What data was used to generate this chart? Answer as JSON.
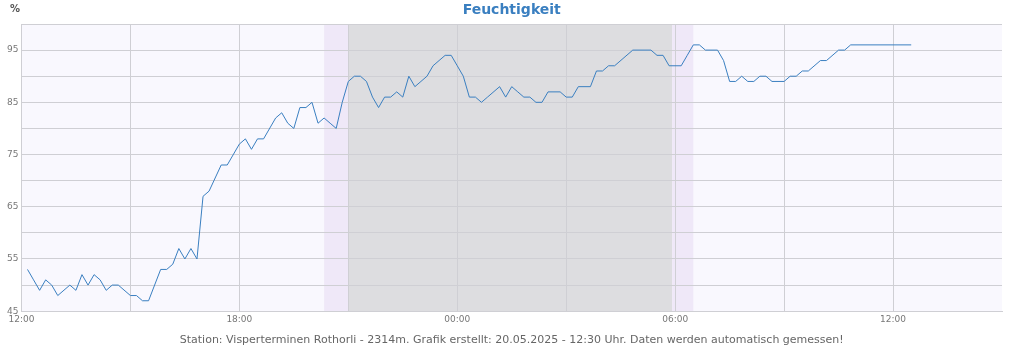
{
  "chart_data": {
    "type": "line",
    "title": "Feuchtigkeit",
    "ylabel": "%",
    "annotations": [
      "Station: Visperterminen Rothorli - 2314m. Grafik erstellt: 20.05.2025 - 12:30 Uhr. Daten werden automatisch gemessen!"
    ],
    "xlim": [
      "2025-05-19T12:00",
      "2025-05-20T15:00"
    ],
    "xticks": [
      {
        "value": "2025-05-19T12:00",
        "label": "12:00"
      },
      {
        "value": "2025-05-19T15:00",
        "label": null
      },
      {
        "value": "2025-05-19T18:00",
        "label": "18:00"
      },
      {
        "value": "2025-05-19T21:00",
        "label": null
      },
      {
        "value": "2025-05-20T00:00",
        "label": "00:00"
      },
      {
        "value": "2025-05-20T03:00",
        "label": null
      },
      {
        "value": "2025-05-20T06:00",
        "label": "06:00"
      },
      {
        "value": "2025-05-20T09:00",
        "label": null
      },
      {
        "value": "2025-05-20T12:00",
        "label": "12:00"
      }
    ],
    "ylim": [
      45,
      100
    ],
    "yticks": [
      45,
      {
        "value": 50,
        "label": null
      },
      55,
      {
        "value": 60,
        "label": null
      },
      65,
      {
        "value": 70,
        "label": null
      },
      75,
      {
        "value": 80,
        "label": null
      },
      85,
      {
        "value": 90,
        "label": null
      },
      95,
      {
        "value": 100,
        "label": null
      }
    ],
    "grid": true,
    "legend": false,
    "marker": "none",
    "bands": [
      {
        "axis": "x",
        "from": "2025-05-19T20:20",
        "to": "2025-05-19T21:00",
        "color": "#efe8f8"
      },
      {
        "axis": "x",
        "from": "2025-05-19T21:00",
        "to": "2025-05-20T05:55",
        "color": "#dddde0"
      },
      {
        "axis": "x",
        "from": "2025-05-20T05:55",
        "to": "2025-05-20T06:30",
        "color": "#efe8f8"
      }
    ],
    "series": [
      {
        "color": "#3a7fc0",
        "x": [
          "2025-05-19T12:10",
          "2025-05-19T12:20",
          "2025-05-19T12:30",
          "2025-05-19T12:40",
          "2025-05-19T12:50",
          "2025-05-19T13:00",
          "2025-05-19T13:20",
          "2025-05-19T13:30",
          "2025-05-19T13:40",
          "2025-05-19T13:50",
          "2025-05-19T14:00",
          "2025-05-19T14:10",
          "2025-05-19T14:20",
          "2025-05-19T14:30",
          "2025-05-19T14:40",
          "2025-05-19T15:00",
          "2025-05-19T15:10",
          "2025-05-19T15:20",
          "2025-05-19T15:30",
          "2025-05-19T15:50",
          "2025-05-19T16:00",
          "2025-05-19T16:10",
          "2025-05-19T16:20",
          "2025-05-19T16:30",
          "2025-05-19T16:40",
          "2025-05-19T16:50",
          "2025-05-19T17:00",
          "2025-05-19T17:10",
          "2025-05-19T17:30",
          "2025-05-19T17:40",
          "2025-05-19T18:00",
          "2025-05-19T18:10",
          "2025-05-19T18:20",
          "2025-05-19T18:30",
          "2025-05-19T18:40",
          "2025-05-19T19:00",
          "2025-05-19T19:10",
          "2025-05-19T19:20",
          "2025-05-19T19:30",
          "2025-05-19T19:40",
          "2025-05-19T19:50",
          "2025-05-19T20:00",
          "2025-05-19T20:10",
          "2025-05-19T20:20",
          "2025-05-19T20:30",
          "2025-05-19T20:40",
          "2025-05-19T20:50",
          "2025-05-19T21:00",
          "2025-05-19T21:10",
          "2025-05-19T21:20",
          "2025-05-19T21:30",
          "2025-05-19T21:40",
          "2025-05-19T21:50",
          "2025-05-19T22:00",
          "2025-05-19T22:10",
          "2025-05-19T22:20",
          "2025-05-19T22:30",
          "2025-05-19T22:40",
          "2025-05-19T22:50",
          "2025-05-19T23:00",
          "2025-05-19T23:10",
          "2025-05-19T23:20",
          "2025-05-19T23:30",
          "2025-05-19T23:40",
          "2025-05-19T23:50",
          "2025-05-20T00:00",
          "2025-05-20T00:10",
          "2025-05-20T00:20",
          "2025-05-20T00:30",
          "2025-05-20T00:40",
          "2025-05-20T00:50",
          "2025-05-20T01:10",
          "2025-05-20T01:20",
          "2025-05-20T01:30",
          "2025-05-20T01:40",
          "2025-05-20T01:50",
          "2025-05-20T02:00",
          "2025-05-20T02:10",
          "2025-05-20T02:20",
          "2025-05-20T02:30",
          "2025-05-20T02:50",
          "2025-05-20T03:00",
          "2025-05-20T03:10",
          "2025-05-20T03:20",
          "2025-05-20T03:40",
          "2025-05-20T03:50",
          "2025-05-20T04:00",
          "2025-05-20T04:10",
          "2025-05-20T04:20",
          "2025-05-20T04:50",
          "2025-05-20T05:20",
          "2025-05-20T05:30",
          "2025-05-20T05:40",
          "2025-05-20T05:50",
          "2025-05-20T06:10",
          "2025-05-20T06:20",
          "2025-05-20T06:30",
          "2025-05-20T06:40",
          "2025-05-20T06:50",
          "2025-05-20T07:10",
          "2025-05-20T07:20",
          "2025-05-20T07:30",
          "2025-05-20T07:40",
          "2025-05-20T07:50",
          "2025-05-20T08:00",
          "2025-05-20T08:10",
          "2025-05-20T08:20",
          "2025-05-20T08:30",
          "2025-05-20T08:40",
          "2025-05-20T09:00",
          "2025-05-20T09:10",
          "2025-05-20T09:20",
          "2025-05-20T09:30",
          "2025-05-20T09:40",
          "2025-05-20T10:00",
          "2025-05-20T10:10",
          "2025-05-20T10:30",
          "2025-05-20T10:40",
          "2025-05-20T10:50",
          "2025-05-20T12:30"
        ],
        "values": [
          53,
          51,
          49,
          51,
          50,
          48,
          50,
          49,
          52,
          50,
          52,
          51,
          49,
          50,
          50,
          48,
          48,
          47,
          47,
          53,
          53,
          54,
          57,
          55,
          57,
          55,
          67,
          68,
          73,
          73,
          77,
          78,
          76,
          78,
          78,
          82,
          83,
          81,
          80,
          84,
          84,
          85,
          81,
          82,
          81,
          80,
          85,
          89,
          90,
          90,
          89,
          86,
          84,
          86,
          86,
          87,
          86,
          90,
          88,
          89,
          90,
          92,
          93,
          94,
          94,
          92,
          90,
          86,
          86,
          85,
          86,
          88,
          86,
          88,
          87,
          86,
          86,
          85,
          85,
          87,
          87,
          86,
          86,
          88,
          88,
          91,
          91,
          92,
          92,
          95,
          95,
          94,
          94,
          92,
          92,
          94,
          96,
          96,
          95,
          95,
          93,
          89,
          89,
          90,
          89,
          89,
          90,
          90,
          89,
          89,
          90,
          90,
          91,
          91,
          93,
          93,
          95,
          95,
          96,
          96
        ]
      }
    ]
  }
}
